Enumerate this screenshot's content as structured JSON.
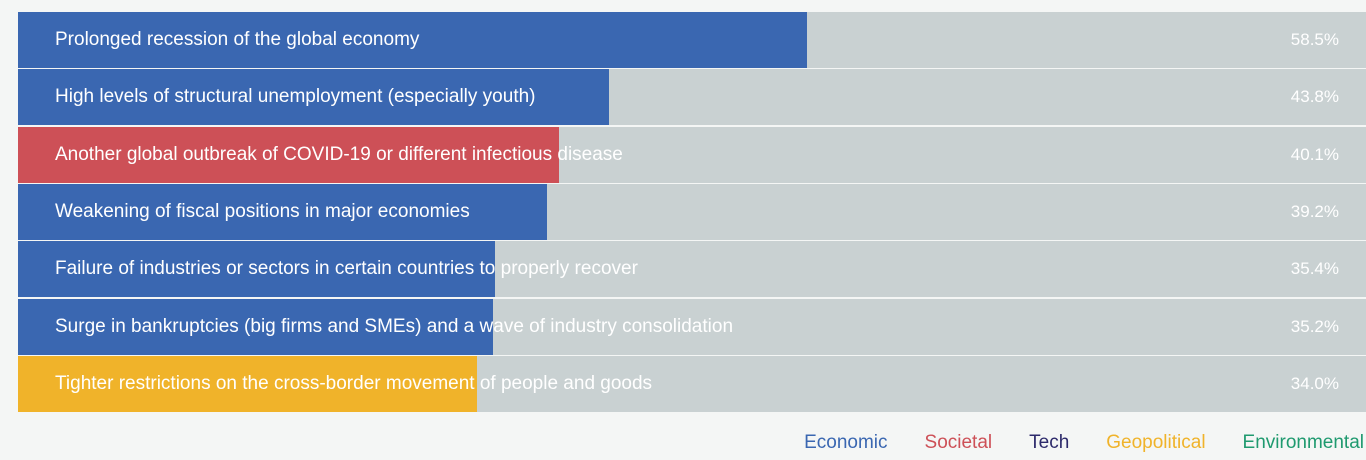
{
  "chart_data": {
    "type": "bar",
    "orientation": "horizontal",
    "xlim": [
      0,
      100
    ],
    "categories": [
      "Prolonged recession of the global economy",
      "High levels of structural unemployment (especially youth)",
      "Another global outbreak of COVID-19 or different infectious disease",
      "Weakening of fiscal positions in major economies",
      "Failure of industries or sectors in certain countries to properly recover",
      "Surge in bankruptcies (big firms and SMEs) and a wave of industry consolidation",
      "Tighter restrictions on the cross-border movement of people and goods"
    ],
    "values": [
      58.5,
      43.8,
      40.1,
      39.2,
      35.4,
      35.2,
      34.0
    ],
    "value_labels": [
      "58.5%",
      "43.8%",
      "40.1%",
      "39.2%",
      "35.4%",
      "35.2%",
      "34.0%"
    ],
    "bar_categories": [
      "Economic",
      "Economic",
      "Societal",
      "Economic",
      "Economic",
      "Economic",
      "Geopolitical"
    ],
    "legend": [
      {
        "name": "Economic",
        "color": "#3a67b1"
      },
      {
        "name": "Societal",
        "color": "#cd5057"
      },
      {
        "name": "Tech",
        "color": "#2d2a6b"
      },
      {
        "name": "Geopolitical",
        "color": "#f0b32a"
      },
      {
        "name": "Environmental",
        "color": "#1f9a6f"
      }
    ],
    "legend_position": "bottom-right",
    "background_track_color": "#c9d1d2"
  }
}
